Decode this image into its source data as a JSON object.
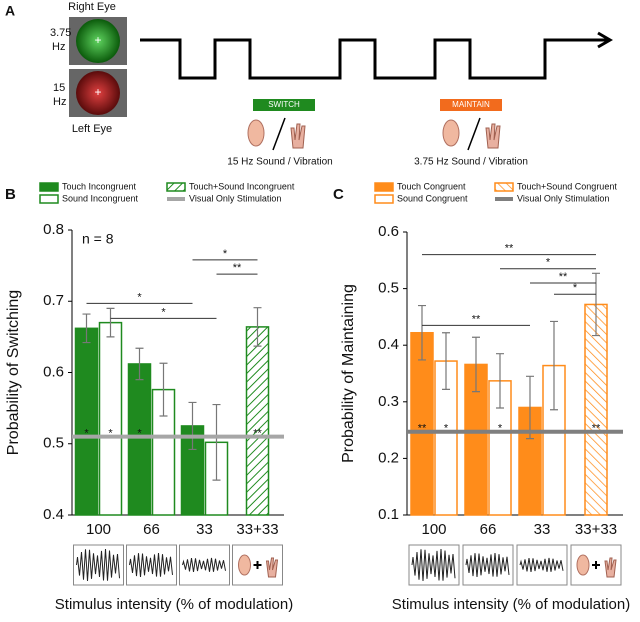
{
  "panel_a": {
    "label": "A",
    "right_eye": "Right Eye",
    "left_eye": "Left Eye",
    "freq_top": [
      "3.75",
      "Hz"
    ],
    "freq_bottom": [
      "15",
      "Hz"
    ],
    "switch": "SWITCH",
    "maintain": "MAINTAIN",
    "switch_caption": "15 Hz Sound / Vibration",
    "maintain_caption": "3.75 Hz Sound / Vibration"
  },
  "chart_data": [
    {
      "type": "bar",
      "panel": "B",
      "y_label": "Probability of Switching",
      "x_label": "Stimulus intensity (% of modulation)",
      "annotation": "n = 8",
      "categories": [
        "100",
        "66",
        "33",
        "33+33"
      ],
      "series": [
        {
          "name": "Touch Incongruent",
          "color": "#1f8a1f",
          "style": "filled",
          "values": [
            0.662,
            0.612,
            0.525,
            null
          ],
          "errors": [
            0.02,
            0.022,
            0.033,
            null
          ],
          "sig_vs_visual": [
            "*",
            "*",
            null,
            null
          ]
        },
        {
          "name": "Sound Incongruent",
          "color": "#1f8a1f",
          "style": "outline",
          "values": [
            0.67,
            0.576,
            0.502,
            null
          ],
          "errors": [
            0.02,
            0.037,
            0.053,
            null
          ],
          "sig_vs_visual": [
            "*",
            null,
            null,
            null
          ]
        },
        {
          "name": "Touch+Sound Incongruent",
          "color": "#1f8a1f",
          "style": "hatched",
          "values": [
            null,
            null,
            null,
            0.664
          ],
          "errors": [
            null,
            null,
            null,
            0.027
          ],
          "sig_vs_visual": [
            null,
            null,
            null,
            "**"
          ]
        }
      ],
      "reference": {
        "name": "Visual Only Stimulation",
        "value": 0.51,
        "color": "#a6a6a6"
      },
      "brackets": [
        {
          "label": "*",
          "from": [
            0,
            0
          ],
          "to": [
            2,
            0
          ],
          "y": 0.697
        },
        {
          "label": "*",
          "from": [
            0,
            1
          ],
          "to": [
            2,
            1
          ],
          "y": 0.676
        },
        {
          "label": "*",
          "from": [
            2,
            0
          ],
          "to": [
            3,
            2
          ],
          "y": 0.758
        },
        {
          "label": "**",
          "from": [
            2,
            1
          ],
          "to": [
            3,
            2
          ],
          "y": 0.738
        }
      ],
      "ylim": [
        0.4,
        0.8
      ],
      "yticks": [
        0.4,
        0.5,
        0.6,
        0.7,
        0.8
      ]
    },
    {
      "type": "bar",
      "panel": "C",
      "y_label": "Probability of Maintaining",
      "x_label": "Stimulus intensity (% of modulation)",
      "categories": [
        "100",
        "66",
        "33",
        "33+33"
      ],
      "series": [
        {
          "name": "Touch Congruent",
          "color": "#ff8c1a",
          "style": "filled",
          "values": [
            0.422,
            0.366,
            0.29,
            null
          ],
          "errors": [
            0.048,
            0.048,
            0.055,
            null
          ],
          "sig_vs_visual": [
            "**",
            null,
            null,
            null
          ]
        },
        {
          "name": "Sound Congruent",
          "color": "#ff8c1a",
          "style": "outline",
          "values": [
            0.372,
            0.337,
            0.364,
            null
          ],
          "errors": [
            0.05,
            0.048,
            0.078,
            null
          ],
          "sig_vs_visual": [
            "*",
            "*",
            null,
            null
          ]
        },
        {
          "name": "Touch+Sound Congruent",
          "color": "#ff8c1a",
          "style": "hatched",
          "values": [
            null,
            null,
            null,
            0.472
          ],
          "errors": [
            null,
            null,
            null,
            0.055
          ],
          "sig_vs_visual": [
            null,
            null,
            null,
            "**"
          ]
        }
      ],
      "reference": {
        "name": "Visual Only Stimulation",
        "value": 0.247,
        "color": "#7f7f7f"
      },
      "brackets": [
        {
          "label": "**",
          "from": [
            0,
            0
          ],
          "to": [
            3,
            2
          ],
          "y": 0.56
        },
        {
          "label": "*",
          "from": [
            1,
            1
          ],
          "to": [
            3,
            2
          ],
          "y": 0.535
        },
        {
          "label": "**",
          "from": [
            2,
            0
          ],
          "to": [
            3,
            2
          ],
          "y": 0.51
        },
        {
          "label": "*",
          "from": [
            2,
            1
          ],
          "to": [
            3,
            2
          ],
          "y": 0.49
        },
        {
          "label": "**",
          "from": [
            0,
            0
          ],
          "to": [
            2,
            0
          ],
          "y": 0.435
        }
      ],
      "ylim": [
        0.1,
        0.6
      ],
      "yticks": [
        0.1,
        0.2,
        0.3,
        0.4,
        0.5,
        0.6
      ]
    }
  ]
}
